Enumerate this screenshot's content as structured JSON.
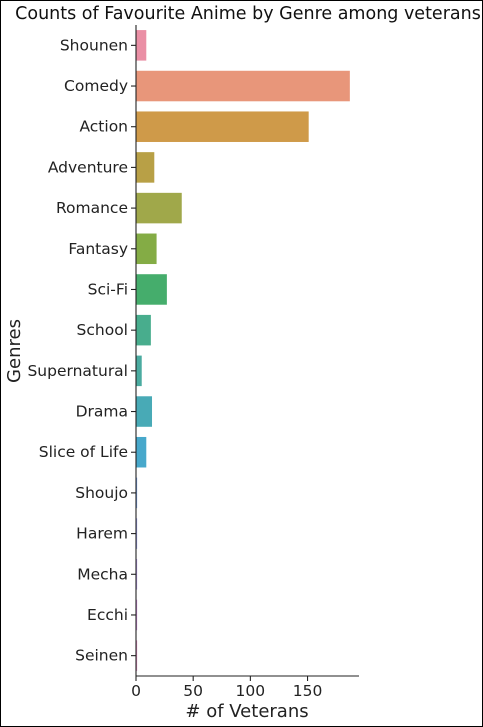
{
  "chart_data": {
    "type": "bar",
    "orientation": "horizontal",
    "title": "Counts of Favourite Anime by Genre among veterans",
    "xlabel": "# of Veterans",
    "ylabel": "Genres",
    "xlim": [
      0,
      195
    ],
    "xticks": [
      0,
      50,
      100,
      150
    ],
    "grid": false,
    "categories": [
      "Shounen",
      "Comedy",
      "Action",
      "Adventure",
      "Romance",
      "Fantasy",
      "Sci-Fi",
      "School",
      "Supernatural",
      "Drama",
      "Slice of Life",
      "Shoujo",
      "Harem",
      "Mecha",
      "Ecchi",
      "Seinen"
    ],
    "values": [
      9,
      187,
      151,
      16,
      40,
      18,
      27,
      13,
      5,
      14,
      9,
      1,
      1,
      1,
      1,
      1
    ],
    "colors": [
      "#ea8fa5",
      "#e8967a",
      "#cf9a49",
      "#b8a046",
      "#a0a84a",
      "#84ac45",
      "#45ad6c",
      "#48ad8d",
      "#4aaba0",
      "#48aab6",
      "#47a8cb",
      "#7aa5e8",
      "#9aa0ec",
      "#b79aea",
      "#d58fe0",
      "#e28cc3"
    ]
  }
}
